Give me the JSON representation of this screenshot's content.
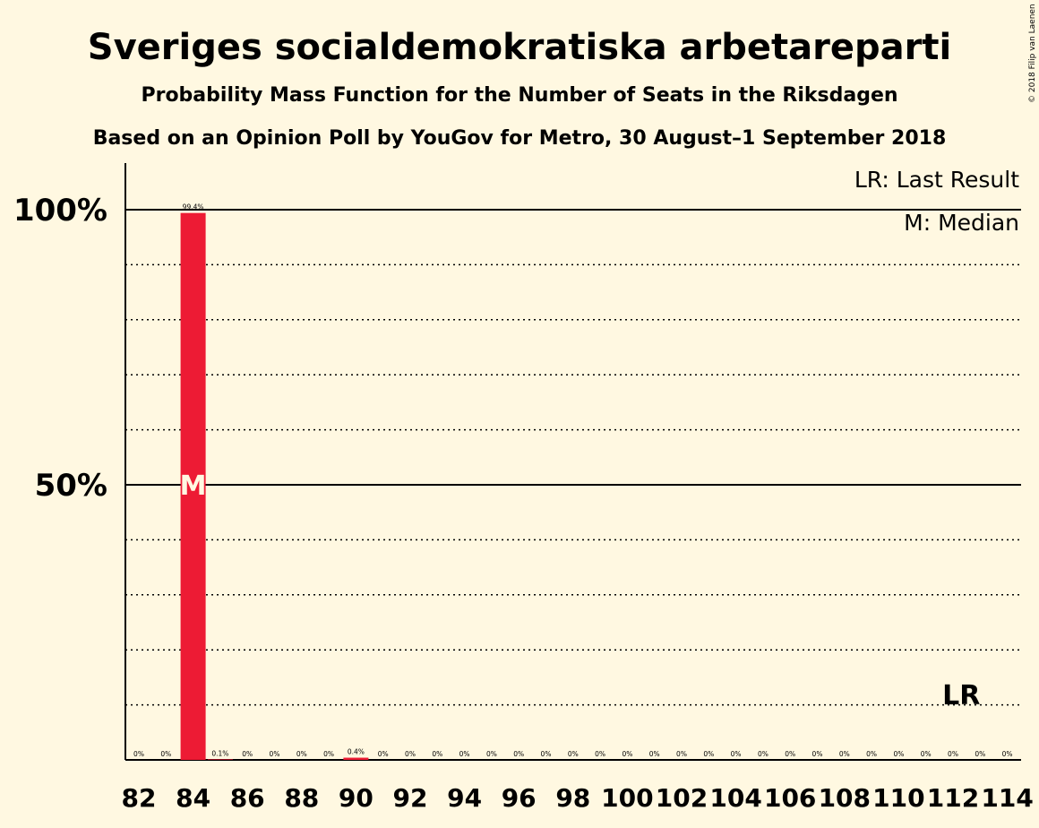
{
  "title": "Sveriges socialdemokratiska arbetareparti",
  "subtitle1": "Probability Mass Function for the Number of Seats in the Riksdagen",
  "subtitle2": "Based on an Opinion Poll by YouGov for Metro, 30 August–1 September 2018",
  "copyright": "© 2018 Filip van Laenen",
  "legend": {
    "last_result": "LR: Last Result",
    "median": "M: Median"
  },
  "colors": {
    "background": "#fff8e1",
    "bar": "#ed1b34",
    "axis": "#000000"
  },
  "chart_data": {
    "type": "bar",
    "x": [
      82,
      83,
      84,
      85,
      86,
      87,
      88,
      89,
      90,
      91,
      92,
      93,
      94,
      95,
      96,
      97,
      98,
      99,
      100,
      101,
      102,
      103,
      104,
      105,
      106,
      107,
      108,
      109,
      110,
      111,
      112,
      113,
      114
    ],
    "values": [
      0,
      0,
      99.4,
      0.1,
      0,
      0,
      0,
      0,
      0.4,
      0,
      0,
      0,
      0,
      0,
      0,
      0,
      0,
      0,
      0,
      0,
      0,
      0,
      0,
      0,
      0,
      0,
      0,
      0,
      0,
      0,
      0,
      0,
      0
    ],
    "value_labels": [
      "0%",
      "0%",
      "99.4%",
      "0.1%",
      "0%",
      "0%",
      "0%",
      "0%",
      "0.4%",
      "0%",
      "0%",
      "0%",
      "0%",
      "0%",
      "0%",
      "0%",
      "0%",
      "0%",
      "0%",
      "0%",
      "0%",
      "0%",
      "0%",
      "0%",
      "0%",
      "0%",
      "0%",
      "0%",
      "0%",
      "0%",
      "0%",
      "0%",
      "0%"
    ],
    "x_tick_labels": [
      "82",
      "84",
      "86",
      "88",
      "90",
      "92",
      "94",
      "96",
      "98",
      "100",
      "102",
      "104",
      "106",
      "108",
      "110",
      "112",
      "114"
    ],
    "y_tick_labels": [
      "50%",
      "100%"
    ],
    "ylim": [
      0,
      110
    ],
    "median": 84,
    "median_label": "M",
    "last_result": 113,
    "last_result_label": "LR",
    "grid": "dotted every 10%, solid at 50% and 100%"
  }
}
